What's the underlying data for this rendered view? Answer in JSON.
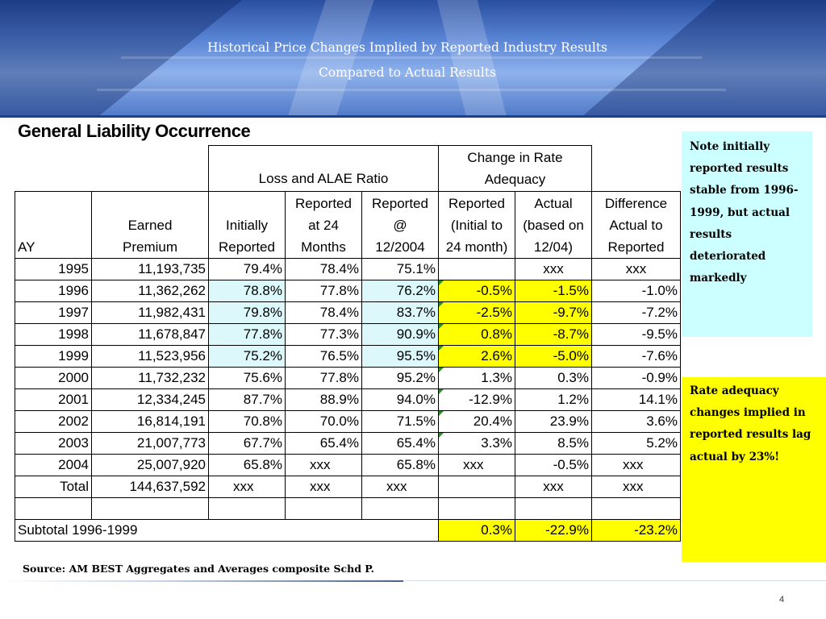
{
  "title": {
    "line1": "Historical Price Changes Implied by Reported Industry Results",
    "line2": "Compared to Actual Results"
  },
  "section_title": "General Liability Occurrence",
  "table": {
    "group_headers": {
      "loss_alae": "Loss and ALAE Ratio",
      "change_line1": "Change in Rate",
      "change_line2": "Adequacy"
    },
    "columns": [
      [
        "AY"
      ],
      [
        "Earned",
        "Premium"
      ],
      [
        "Initially",
        "Reported"
      ],
      [
        "Reported",
        "at 24",
        "Months"
      ],
      [
        "Reported",
        "@",
        "12/2004"
      ],
      [
        "Reported",
        "(Initial to",
        "24 month)"
      ],
      [
        "Actual",
        "(based on",
        "12/04)"
      ],
      [
        "Difference",
        "Actual to",
        "Reported"
      ]
    ],
    "rows": [
      [
        "1995",
        "11,193,735",
        "79.4%",
        "78.4%",
        "75.1%",
        "",
        "xxx",
        "xxx"
      ],
      [
        "1996",
        "11,362,262",
        "78.8%",
        "77.8%",
        "76.2%",
        "-0.5%",
        "-1.5%",
        "-1.0%"
      ],
      [
        "1997",
        "11,982,431",
        "79.8%",
        "78.4%",
        "83.7%",
        "-2.5%",
        "-9.7%",
        "-7.2%"
      ],
      [
        "1998",
        "11,678,847",
        "77.8%",
        "77.3%",
        "90.9%",
        "0.8%",
        "-8.7%",
        "-9.5%"
      ],
      [
        "1999",
        "11,523,956",
        "75.2%",
        "76.5%",
        "95.5%",
        "2.6%",
        "-5.0%",
        "-7.6%"
      ],
      [
        "2000",
        "11,732,232",
        "75.6%",
        "77.8%",
        "95.2%",
        "1.3%",
        "0.3%",
        "-0.9%"
      ],
      [
        "2001",
        "12,334,245",
        "87.7%",
        "88.9%",
        "94.0%",
        "-12.9%",
        "1.2%",
        "14.1%"
      ],
      [
        "2002",
        "16,814,191",
        "70.8%",
        "70.0%",
        "71.5%",
        "20.4%",
        "23.9%",
        "3.6%"
      ],
      [
        "2003",
        "21,007,773",
        "67.7%",
        "65.4%",
        "65.4%",
        "3.3%",
        "8.5%",
        "5.2%"
      ],
      [
        "2004",
        "25,007,920",
        "65.8%",
        "xxx",
        "65.8%",
        "xxx",
        "-0.5%",
        "xxx"
      ],
      [
        "Total",
        "144,637,592",
        "xxx",
        "xxx",
        "xxx",
        "",
        "xxx",
        "xxx"
      ]
    ],
    "subtotal": {
      "label": "Subtotal 1996-1999",
      "values": [
        "0.3%",
        "-22.9%",
        "-23.2%"
      ]
    }
  },
  "notes": {
    "note1": "Note initially reported results stable from 1996-1999, but actual results deteriorated markedly",
    "note2": "Rate adequacy changes implied in reported results lag actual by 23%!"
  },
  "colors": {
    "highlight_cyan": "#dcf8fb",
    "highlight_yellow": "#ffff00",
    "note1_bg": "#ccffff",
    "note2_bg": "#ffff00"
  },
  "source": "Source: AM BEST Aggregates and Averages composite Schd P.",
  "page_number": "4"
}
